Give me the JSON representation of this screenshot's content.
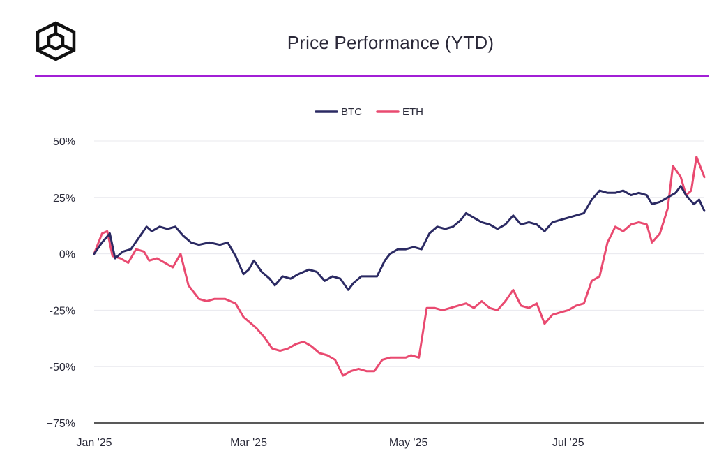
{
  "header": {
    "title": "Price Performance (YTD)",
    "divider_color": "#a21fd6",
    "logo_icon": "cube-logo-icon"
  },
  "chart_data": {
    "type": "line",
    "title": "Price Performance (YTD)",
    "xlabel": "",
    "ylabel": "",
    "x_start": "2025-01-01",
    "x_end": "2025-08-22",
    "x_ticks": [
      {
        "date": "2025-01-01",
        "label": "Jan '25"
      },
      {
        "date": "2025-03-01",
        "label": "Mar '25"
      },
      {
        "date": "2025-05-01",
        "label": "May '25"
      },
      {
        "date": "2025-07-01",
        "label": "Jul '25"
      }
    ],
    "ylim": [
      -75,
      50
    ],
    "y_ticks": [
      {
        "value": 50,
        "label": "50%"
      },
      {
        "value": 25,
        "label": "25%"
      },
      {
        "value": 0,
        "label": "0%"
      },
      {
        "value": -25,
        "label": "-25%"
      },
      {
        "value": -50,
        "label": "-50%"
      },
      {
        "value": -75,
        "label": "−75%"
      }
    ],
    "grid": true,
    "legend_position": "top-center",
    "series": [
      {
        "name": "BTC",
        "color": "#2b2a63",
        "points": [
          [
            "2025-01-01",
            0
          ],
          [
            "2025-01-04",
            5
          ],
          [
            "2025-01-07",
            9
          ],
          [
            "2025-01-09",
            -2
          ],
          [
            "2025-01-12",
            1
          ],
          [
            "2025-01-15",
            2
          ],
          [
            "2025-01-18",
            7
          ],
          [
            "2025-01-21",
            12
          ],
          [
            "2025-01-23",
            10
          ],
          [
            "2025-01-26",
            12
          ],
          [
            "2025-01-29",
            11
          ],
          [
            "2025-02-01",
            12
          ],
          [
            "2025-02-04",
            8
          ],
          [
            "2025-02-07",
            5
          ],
          [
            "2025-02-10",
            4
          ],
          [
            "2025-02-14",
            5
          ],
          [
            "2025-02-18",
            4
          ],
          [
            "2025-02-21",
            5
          ],
          [
            "2025-02-24",
            -1
          ],
          [
            "2025-02-27",
            -9
          ],
          [
            "2025-03-01",
            -7
          ],
          [
            "2025-03-03",
            -3
          ],
          [
            "2025-03-06",
            -8
          ],
          [
            "2025-03-09",
            -11
          ],
          [
            "2025-03-11",
            -14
          ],
          [
            "2025-03-14",
            -10
          ],
          [
            "2025-03-17",
            -11
          ],
          [
            "2025-03-20",
            -9
          ],
          [
            "2025-03-24",
            -7
          ],
          [
            "2025-03-27",
            -8
          ],
          [
            "2025-03-30",
            -12
          ],
          [
            "2025-04-02",
            -10
          ],
          [
            "2025-04-05",
            -11
          ],
          [
            "2025-04-08",
            -16
          ],
          [
            "2025-04-10",
            -13
          ],
          [
            "2025-04-13",
            -10
          ],
          [
            "2025-04-16",
            -10
          ],
          [
            "2025-04-19",
            -10
          ],
          [
            "2025-04-22",
            -3
          ],
          [
            "2025-04-24",
            0
          ],
          [
            "2025-04-27",
            2
          ],
          [
            "2025-04-30",
            2
          ],
          [
            "2025-05-03",
            3
          ],
          [
            "2025-05-06",
            2
          ],
          [
            "2025-05-09",
            9
          ],
          [
            "2025-05-12",
            12
          ],
          [
            "2025-05-15",
            11
          ],
          [
            "2025-05-18",
            12
          ],
          [
            "2025-05-21",
            15
          ],
          [
            "2025-05-23",
            18
          ],
          [
            "2025-05-26",
            16
          ],
          [
            "2025-05-29",
            14
          ],
          [
            "2025-06-01",
            13
          ],
          [
            "2025-06-04",
            11
          ],
          [
            "2025-06-07",
            13
          ],
          [
            "2025-06-10",
            17
          ],
          [
            "2025-06-13",
            13
          ],
          [
            "2025-06-16",
            14
          ],
          [
            "2025-06-19",
            13
          ],
          [
            "2025-06-22",
            10
          ],
          [
            "2025-06-25",
            14
          ],
          [
            "2025-06-28",
            15
          ],
          [
            "2025-07-01",
            16
          ],
          [
            "2025-07-04",
            17
          ],
          [
            "2025-07-07",
            18
          ],
          [
            "2025-07-10",
            24
          ],
          [
            "2025-07-13",
            28
          ],
          [
            "2025-07-16",
            27
          ],
          [
            "2025-07-19",
            27
          ],
          [
            "2025-07-22",
            28
          ],
          [
            "2025-07-25",
            26
          ],
          [
            "2025-07-28",
            27
          ],
          [
            "2025-07-31",
            26
          ],
          [
            "2025-08-02",
            22
          ],
          [
            "2025-08-05",
            23
          ],
          [
            "2025-08-08",
            25
          ],
          [
            "2025-08-11",
            27
          ],
          [
            "2025-08-13",
            30
          ],
          [
            "2025-08-15",
            26
          ],
          [
            "2025-08-18",
            22
          ],
          [
            "2025-08-20",
            24
          ],
          [
            "2025-08-22",
            19
          ]
        ]
      },
      {
        "name": "ETH",
        "color": "#e94a70",
        "points": [
          [
            "2025-01-01",
            0
          ],
          [
            "2025-01-04",
            9
          ],
          [
            "2025-01-06",
            10
          ],
          [
            "2025-01-08",
            -1
          ],
          [
            "2025-01-11",
            -2
          ],
          [
            "2025-01-14",
            -4
          ],
          [
            "2025-01-17",
            2
          ],
          [
            "2025-01-20",
            1
          ],
          [
            "2025-01-22",
            -3
          ],
          [
            "2025-01-25",
            -2
          ],
          [
            "2025-01-28",
            -4
          ],
          [
            "2025-01-31",
            -6
          ],
          [
            "2025-02-03",
            0
          ],
          [
            "2025-02-06",
            -14
          ],
          [
            "2025-02-10",
            -20
          ],
          [
            "2025-02-13",
            -21
          ],
          [
            "2025-02-16",
            -20
          ],
          [
            "2025-02-20",
            -20
          ],
          [
            "2025-02-24",
            -22
          ],
          [
            "2025-02-27",
            -28
          ],
          [
            "2025-03-02",
            -31
          ],
          [
            "2025-03-04",
            -33
          ],
          [
            "2025-03-07",
            -37
          ],
          [
            "2025-03-10",
            -42
          ],
          [
            "2025-03-13",
            -43
          ],
          [
            "2025-03-16",
            -42
          ],
          [
            "2025-03-19",
            -40
          ],
          [
            "2025-03-22",
            -39
          ],
          [
            "2025-03-25",
            -41
          ],
          [
            "2025-03-28",
            -44
          ],
          [
            "2025-03-31",
            -45
          ],
          [
            "2025-04-03",
            -47
          ],
          [
            "2025-04-06",
            -54
          ],
          [
            "2025-04-09",
            -52
          ],
          [
            "2025-04-12",
            -51
          ],
          [
            "2025-04-15",
            -52
          ],
          [
            "2025-04-18",
            -52
          ],
          [
            "2025-04-21",
            -47
          ],
          [
            "2025-04-24",
            -46
          ],
          [
            "2025-04-27",
            -46
          ],
          [
            "2025-04-30",
            -46
          ],
          [
            "2025-05-02",
            -45
          ],
          [
            "2025-05-05",
            -46
          ],
          [
            "2025-05-08",
            -24
          ],
          [
            "2025-05-11",
            -24
          ],
          [
            "2025-05-14",
            -25
          ],
          [
            "2025-05-17",
            -24
          ],
          [
            "2025-05-20",
            -23
          ],
          [
            "2025-05-23",
            -22
          ],
          [
            "2025-05-26",
            -24
          ],
          [
            "2025-05-29",
            -21
          ],
          [
            "2025-06-01",
            -24
          ],
          [
            "2025-06-04",
            -25
          ],
          [
            "2025-06-07",
            -21
          ],
          [
            "2025-06-10",
            -16
          ],
          [
            "2025-06-13",
            -23
          ],
          [
            "2025-06-16",
            -24
          ],
          [
            "2025-06-19",
            -22
          ],
          [
            "2025-06-22",
            -31
          ],
          [
            "2025-06-25",
            -27
          ],
          [
            "2025-06-28",
            -26
          ],
          [
            "2025-07-01",
            -25
          ],
          [
            "2025-07-04",
            -23
          ],
          [
            "2025-07-07",
            -22
          ],
          [
            "2025-07-10",
            -12
          ],
          [
            "2025-07-13",
            -10
          ],
          [
            "2025-07-16",
            5
          ],
          [
            "2025-07-19",
            12
          ],
          [
            "2025-07-22",
            10
          ],
          [
            "2025-07-25",
            13
          ],
          [
            "2025-07-28",
            14
          ],
          [
            "2025-07-31",
            13
          ],
          [
            "2025-08-02",
            5
          ],
          [
            "2025-08-05",
            9
          ],
          [
            "2025-08-08",
            20
          ],
          [
            "2025-08-10",
            39
          ],
          [
            "2025-08-13",
            34
          ],
          [
            "2025-08-15",
            26
          ],
          [
            "2025-08-17",
            28
          ],
          [
            "2025-08-19",
            43
          ],
          [
            "2025-08-22",
            34
          ]
        ]
      }
    ]
  }
}
